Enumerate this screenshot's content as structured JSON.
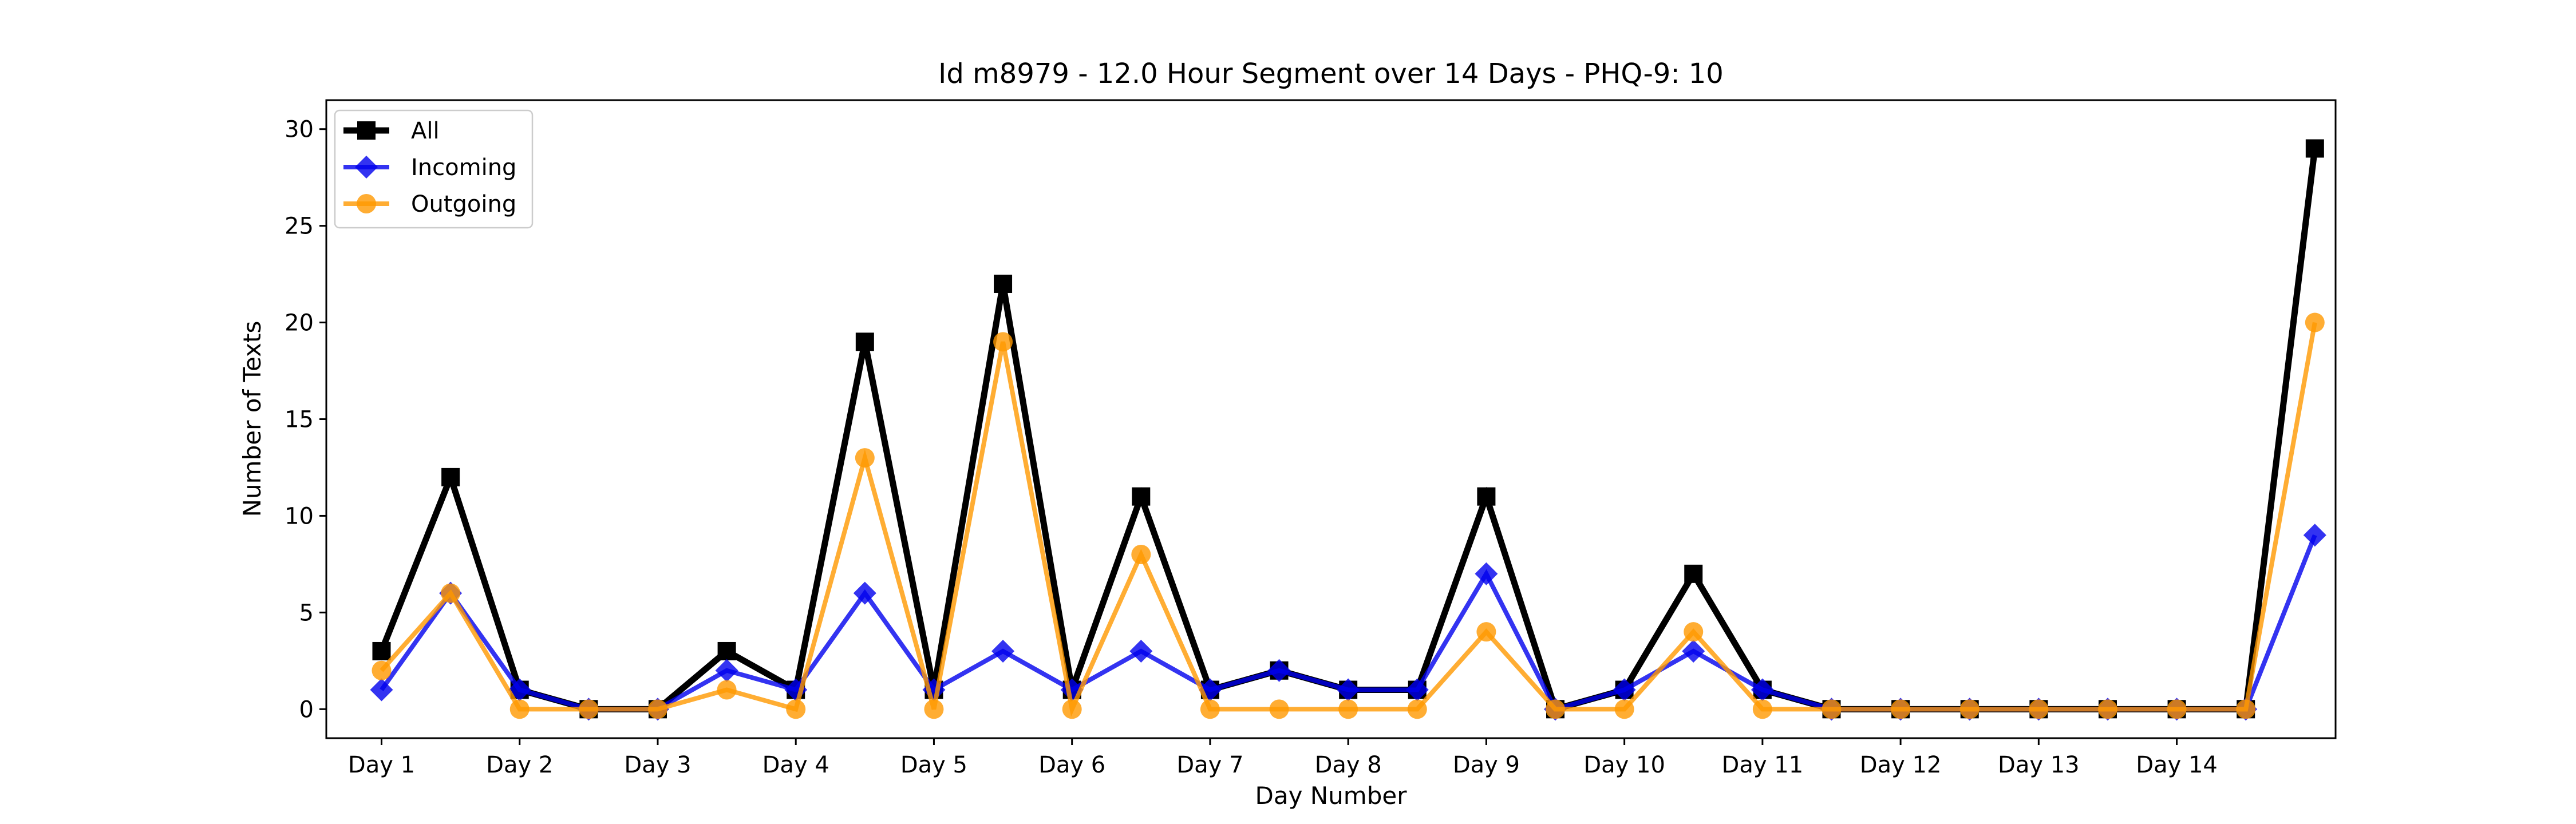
{
  "chart_data": {
    "type": "line",
    "title": "Id m8979 - 12.0 Hour Segment over 14 Days - PHQ-9: 10",
    "xlabel": "Day Number",
    "ylabel": "Number of Texts",
    "ylim": [
      -1.5,
      31.5
    ],
    "yticks": [
      0,
      5,
      10,
      15,
      20,
      25,
      30
    ],
    "xlim": [
      -0.8,
      28.3
    ],
    "xtick_positions": [
      0,
      2,
      4,
      6,
      8,
      10,
      12,
      14,
      16,
      18,
      20,
      22,
      24,
      26
    ],
    "xtick_labels": [
      "Day 1",
      "Day 2",
      "Day 3",
      "Day 4",
      "Day 5",
      "Day 6",
      "Day 7",
      "Day 8",
      "Day 9",
      "Day 10",
      "Day 11",
      "Day 12",
      "Day 13",
      "Day 14"
    ],
    "grid": false,
    "legend_position": "top-left",
    "series": [
      {
        "name": "All",
        "color": "#000000",
        "marker": "square",
        "values": [
          3,
          12,
          1,
          0,
          0,
          3,
          1,
          19,
          1,
          22,
          1,
          11,
          1,
          2,
          1,
          1,
          11,
          0,
          1,
          7,
          1,
          0,
          0,
          0,
          0,
          0,
          0,
          0,
          29
        ]
      },
      {
        "name": "Incoming",
        "color": "#0000ee",
        "marker": "diamond",
        "values": [
          1,
          6,
          1,
          0,
          0,
          2,
          1,
          6,
          1,
          3,
          1,
          3,
          1,
          2,
          1,
          1,
          7,
          0,
          1,
          3,
          1,
          0,
          0,
          0,
          0,
          0,
          0,
          0,
          9
        ]
      },
      {
        "name": "Outgoing",
        "color": "#ff9900",
        "marker": "circle",
        "values": [
          2,
          6,
          0,
          0,
          0,
          1,
          0,
          13,
          0,
          19,
          0,
          8,
          0,
          0,
          0,
          0,
          4,
          0,
          0,
          4,
          0,
          0,
          0,
          0,
          0,
          0,
          0,
          0,
          20
        ]
      }
    ]
  }
}
